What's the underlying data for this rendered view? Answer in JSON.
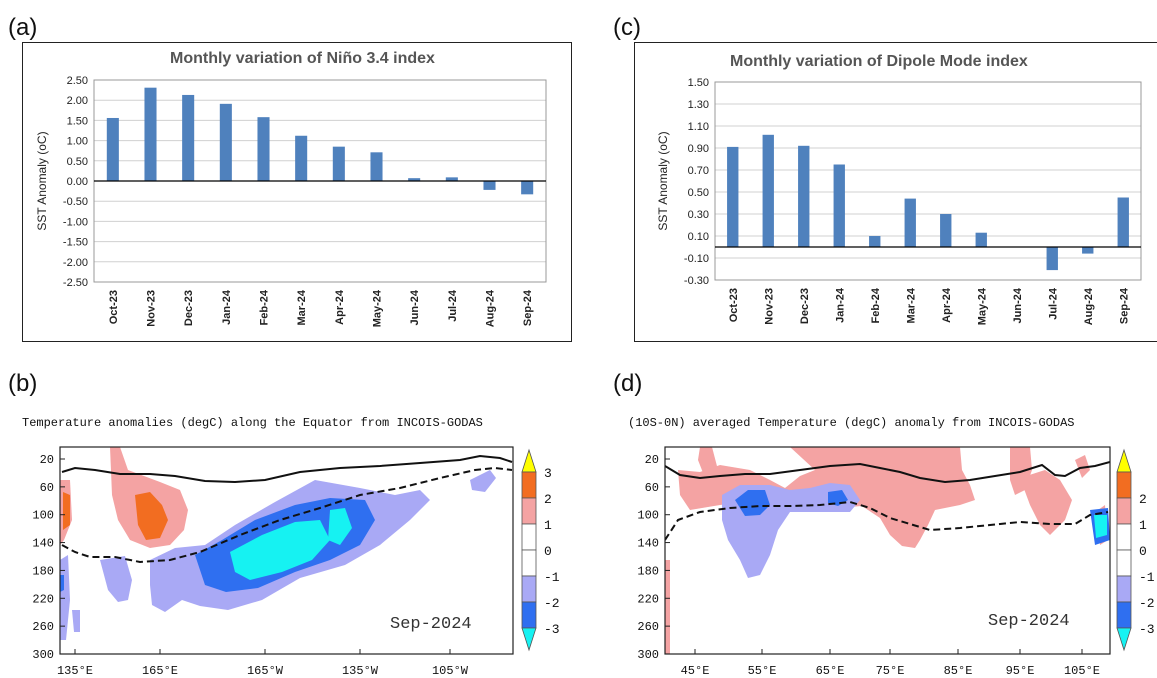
{
  "panels": {
    "a": "(a)",
    "b": "(b)",
    "c": "(c)",
    "d": "(d)"
  },
  "colors": {
    "bar": "#4f81bd",
    "warm1": "#f4a3a3",
    "warm2": "#f07a3a",
    "warm3": "#f26d21",
    "cool1": "#a9a9f5",
    "cool2": "#2f6ff0",
    "cool3": "#16f2f2",
    "triangle_top": "#ffff00",
    "triangle_bottom": "#16f2f2"
  },
  "chart_data": [
    {
      "type": "bar",
      "title": "Monthly variation of Niño 3.4 index",
      "ylabel": "SST Anomaly (oC)",
      "categories": [
        "Oct-23",
        "Nov-23",
        "Dec-23",
        "Jan-24",
        "Feb-24",
        "Mar-24",
        "Apr-24",
        "May-24",
        "Jun-24",
        "Jul-24",
        "Aug-24",
        "Sep-24"
      ],
      "values": [
        1.56,
        2.31,
        2.13,
        1.91,
        1.58,
        1.12,
        0.85,
        0.71,
        0.07,
        0.09,
        -0.22,
        -0.33
      ],
      "ylim": [
        -2.5,
        2.5
      ],
      "yticks": [
        "2.50",
        "2.00",
        "1.50",
        "1.00",
        "0.50",
        "0.00",
        "-0.50",
        "-1.00",
        "-1.50",
        "-2.00",
        "-2.50"
      ],
      "grid": true
    },
    {
      "type": "bar",
      "title": "Monthly variation of Dipole Mode index",
      "ylabel": "SST Anomaly (oC)",
      "categories": [
        "Oct-23",
        "Nov-23",
        "Dec-23",
        "Jan-24",
        "Feb-24",
        "Mar-24",
        "Apr-24",
        "May-24",
        "Jun-24",
        "Jul-24",
        "Aug-24",
        "Sep-24"
      ],
      "values": [
        0.91,
        1.02,
        0.92,
        0.75,
        0.1,
        0.44,
        0.3,
        0.13,
        0.0,
        -0.21,
        -0.06,
        0.45
      ],
      "ylim": [
        -0.3,
        1.5
      ],
      "yticks": [
        "1.50",
        "1.30",
        "1.10",
        "0.90",
        "0.70",
        "0.50",
        "0.30",
        "0.10",
        "-0.10",
        "-0.30"
      ],
      "grid": true
    },
    {
      "type": "heatmap",
      "title": "Temperature anomalies (degC) along the Equator from INCOIS-GODAS",
      "annotation": "Sep-2024",
      "xticks": [
        "135°E",
        "165°E",
        "165°W",
        "135°W",
        "105°W"
      ],
      "yticks": [
        "20",
        "60",
        "100",
        "140",
        "180",
        "220",
        "260",
        "300"
      ],
      "colorbar": [
        "3",
        "2",
        "1",
        "0",
        "-1",
        "-2",
        "-3"
      ]
    },
    {
      "type": "heatmap",
      "title": "(10S-0N) averaged Temperature (degC) anomaly from INCOIS-GODAS",
      "annotation": "Sep-2024",
      "xticks": [
        "45°E",
        "55°E",
        "65°E",
        "75°E",
        "85°E",
        "95°E",
        "105°E"
      ],
      "yticks": [
        "20",
        "60",
        "100",
        "140",
        "180",
        "220",
        "260",
        "300"
      ],
      "colorbar": [
        "2",
        "1",
        "0",
        "-1",
        "-2",
        "-3"
      ]
    }
  ]
}
